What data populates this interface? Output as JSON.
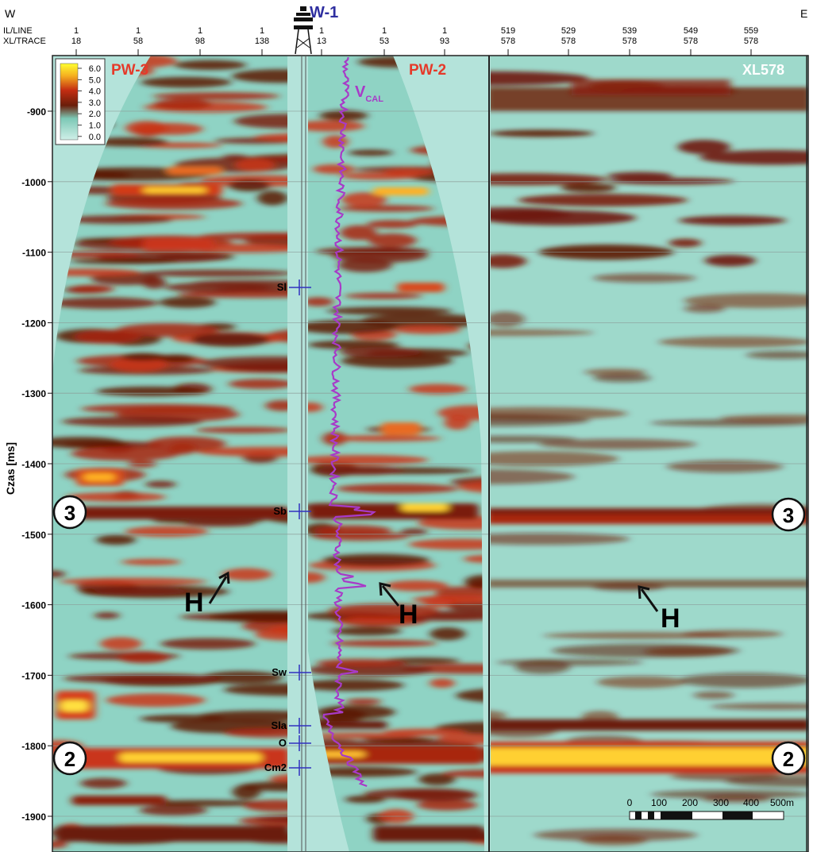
{
  "header": {
    "west": "W",
    "east": "E",
    "il_label": "IL/LINE",
    "xl_label": "XL/TRACE",
    "well_name": "W-1"
  },
  "left_ticks": [
    {
      "il": "1",
      "xl": "18"
    },
    {
      "il": "1",
      "xl": "58"
    },
    {
      "il": "1",
      "xl": "98"
    },
    {
      "il": "1",
      "xl": "138"
    },
    {
      "il": "1",
      "xl": "13"
    },
    {
      "il": "1",
      "xl": "53"
    },
    {
      "il": "1",
      "xl": "93"
    }
  ],
  "right_ticks": [
    {
      "il": "519",
      "xl": "578"
    },
    {
      "il": "529",
      "xl": "578"
    },
    {
      "il": "539",
      "xl": "578"
    },
    {
      "il": "549",
      "xl": "578"
    },
    {
      "il": "559",
      "xl": "578"
    }
  ],
  "y_axis": {
    "label": "Czas [ms]",
    "ticks": [
      "-900",
      "-1000",
      "-1100",
      "-1200",
      "-1300",
      "-1400",
      "-1500",
      "-1600",
      "-1700",
      "-1800",
      "-1900"
    ]
  },
  "panels": {
    "left_title": "PW-3",
    "mid_title": "PW-2",
    "right_title": "XL578",
    "vcal_main": "V",
    "vcal_sub": "CAL"
  },
  "colorbar": {
    "labels": [
      "6.0",
      "5.0",
      "4.0",
      "3.0",
      "2.0",
      "1.0",
      "0.0"
    ],
    "colors": [
      "#ffff40",
      "#f0b020",
      "#c03010",
      "#6a1a08",
      "#8a4a28",
      "#7ad0bf",
      "#c8ece4"
    ]
  },
  "well_markers": [
    "Sl",
    "Sb",
    "Sw",
    "Sla",
    "O",
    "Cm2"
  ],
  "horizons": {
    "h3": "3",
    "h2": "2",
    "h_label": "H"
  },
  "scalebar": {
    "labels": [
      "0",
      "100",
      "200",
      "300",
      "400",
      "500m"
    ]
  }
}
